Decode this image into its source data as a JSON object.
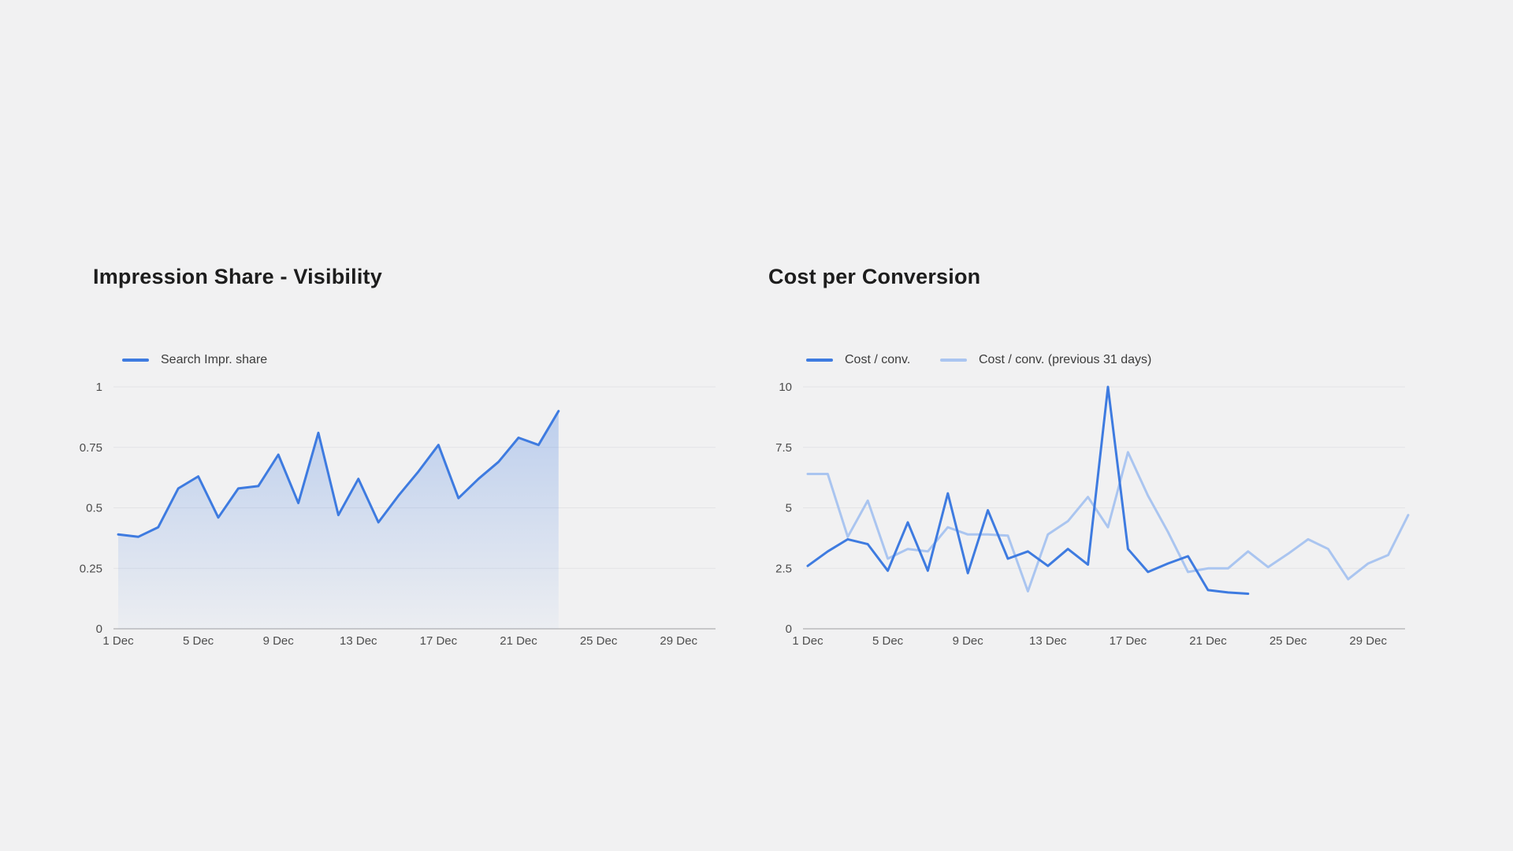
{
  "page": {
    "background": "#f1f1f2",
    "gridline_color": "#e3e3e6",
    "baseline_color": "#b9b9bb"
  },
  "chart_data": [
    {
      "type": "area",
      "title": "Impression Share - Visibility",
      "xlabel": "",
      "ylabel": "",
      "ylim": [
        0,
        1
      ],
      "grid": "horizontal",
      "legend_position": "top-left",
      "legend": [
        {
          "label": "Search Impr. share",
          "color": "#3e7be0"
        }
      ],
      "y_ticks": [
        {
          "label": "1",
          "value": 1
        },
        {
          "label": "0.75",
          "value": 0.75
        },
        {
          "label": "0.5",
          "value": 0.5
        },
        {
          "label": "0.25",
          "value": 0.25
        },
        {
          "label": "0",
          "value": 0
        }
      ],
      "x_ticks": [
        {
          "label": "1 Dec",
          "day": 1
        },
        {
          "label": "5 Dec",
          "day": 5
        },
        {
          "label": "9 Dec",
          "day": 9
        },
        {
          "label": "13 Dec",
          "day": 13
        },
        {
          "label": "17 Dec",
          "day": 17
        },
        {
          "label": "21 Dec",
          "day": 21
        },
        {
          "label": "25 Dec",
          "day": 25
        },
        {
          "label": "29 Dec",
          "day": 29
        }
      ],
      "series": [
        {
          "name": "Search Impr. share",
          "color": "#3e7be0",
          "area": true,
          "days": [
            1,
            2,
            3,
            4,
            5,
            6,
            7,
            8,
            9,
            10,
            11,
            12,
            13,
            14,
            15,
            16,
            17,
            18,
            19,
            20,
            21,
            22,
            23
          ],
          "values": [
            0.39,
            0.38,
            0.42,
            0.58,
            0.63,
            0.46,
            0.58,
            0.59,
            0.72,
            0.52,
            0.81,
            0.47,
            0.62,
            0.44,
            0.55,
            0.65,
            0.76,
            0.54,
            0.62,
            0.69,
            0.79,
            0.76,
            0.9
          ]
        }
      ]
    },
    {
      "type": "line",
      "title": "Cost per Conversion",
      "xlabel": "",
      "ylabel": "",
      "ylim": [
        0,
        10
      ],
      "grid": "horizontal",
      "legend_position": "top-left",
      "legend": [
        {
          "label": "Cost / conv.",
          "color": "#3e7be0"
        },
        {
          "label": "Cost / conv. (previous 31 days)",
          "color": "#aac5f0"
        }
      ],
      "y_ticks": [
        {
          "label": "10",
          "value": 10
        },
        {
          "label": "7.5",
          "value": 7.5
        },
        {
          "label": "5",
          "value": 5
        },
        {
          "label": "2.5",
          "value": 2.5
        },
        {
          "label": "0",
          "value": 0
        }
      ],
      "x_ticks": [
        {
          "label": "1 Dec",
          "day": 1
        },
        {
          "label": "5 Dec",
          "day": 5
        },
        {
          "label": "9 Dec",
          "day": 9
        },
        {
          "label": "13 Dec",
          "day": 13
        },
        {
          "label": "17 Dec",
          "day": 17
        },
        {
          "label": "21 Dec",
          "day": 21
        },
        {
          "label": "25 Dec",
          "day": 25
        },
        {
          "label": "29 Dec",
          "day": 29
        }
      ],
      "series": [
        {
          "name": "Cost / conv.",
          "color": "#3e7be0",
          "area": false,
          "days": [
            1,
            2,
            3,
            4,
            5,
            6,
            7,
            8,
            9,
            10,
            11,
            12,
            13,
            14,
            15,
            16,
            17,
            18,
            19,
            20,
            21,
            22,
            23
          ],
          "values": [
            2.6,
            3.2,
            3.7,
            3.5,
            2.4,
            4.4,
            2.4,
            5.6,
            2.3,
            4.9,
            2.9,
            3.2,
            2.6,
            3.3,
            2.65,
            10.0,
            3.3,
            2.35,
            2.7,
            3.0,
            1.6,
            1.5,
            1.45
          ]
        },
        {
          "name": "Cost / conv. (previous 31 days)",
          "color": "#aac5f0",
          "area": false,
          "days": [
            1,
            2,
            3,
            4,
            5,
            6,
            7,
            8,
            9,
            10,
            11,
            12,
            13,
            14,
            15,
            16,
            17,
            18,
            19,
            20,
            21,
            22,
            23,
            24,
            25,
            26,
            27,
            28,
            29,
            30,
            31
          ],
          "values": [
            6.4,
            6.4,
            3.8,
            5.3,
            2.9,
            3.3,
            3.2,
            4.2,
            3.9,
            3.9,
            3.85,
            1.55,
            3.9,
            4.45,
            5.45,
            4.2,
            7.3,
            5.5,
            4.0,
            2.35,
            2.5,
            2.5,
            3.2,
            2.55,
            3.1,
            3.7,
            3.3,
            2.05,
            2.7,
            3.05,
            4.7
          ]
        }
      ]
    }
  ]
}
